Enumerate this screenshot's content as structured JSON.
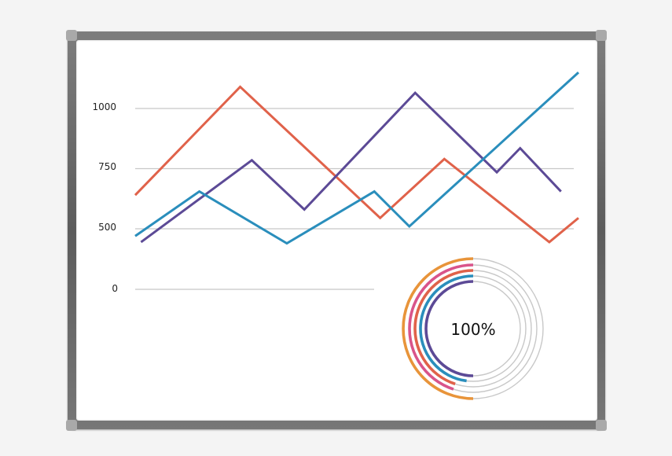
{
  "chart_data": [
    {
      "type": "line",
      "title": "",
      "xlabel": "",
      "ylabel": "",
      "y_ticks": [
        "1000",
        "750",
        "500",
        "0"
      ],
      "grid": true,
      "series": [
        {
          "name": "orange",
          "color": "#e0624a",
          "points": [
            [
              0,
              640
            ],
            [
              1.8,
              1090
            ],
            [
              4.2,
              545
            ],
            [
              5.3,
              790
            ],
            [
              7.1,
              390
            ],
            [
              7.6,
              545
            ]
          ]
        },
        {
          "name": "purple",
          "color": "#5c4a96",
          "points": [
            [
              0.1,
              390
            ],
            [
              2.0,
              785
            ],
            [
              2.9,
              580
            ],
            [
              4.8,
              1065
            ],
            [
              6.2,
              735
            ],
            [
              6.6,
              835
            ],
            [
              7.3,
              655
            ]
          ]
        },
        {
          "name": "blue",
          "color": "#2a8ebc",
          "points": [
            [
              0,
              440
            ],
            [
              1.1,
              655
            ],
            [
              2.6,
              380
            ],
            [
              4.1,
              655
            ],
            [
              4.7,
              510
            ],
            [
              7.6,
              1150
            ]
          ]
        }
      ]
    },
    {
      "type": "pie",
      "title": "",
      "center_label": "100%",
      "rings": [
        {
          "name": "orange",
          "color": "#e8943a",
          "value": 50
        },
        {
          "name": "pink",
          "color": "#d9548a",
          "value": 45
        },
        {
          "name": "red",
          "color": "#e0624a",
          "value": 45
        },
        {
          "name": "blue",
          "color": "#2a8ebc",
          "value": 48
        },
        {
          "name": "purple",
          "color": "#5c4a96",
          "value": 50
        }
      ]
    }
  ],
  "colors": {
    "grid": "#c8c8c8",
    "track": "#c8c8c8",
    "frame": "#6a6a6a"
  }
}
